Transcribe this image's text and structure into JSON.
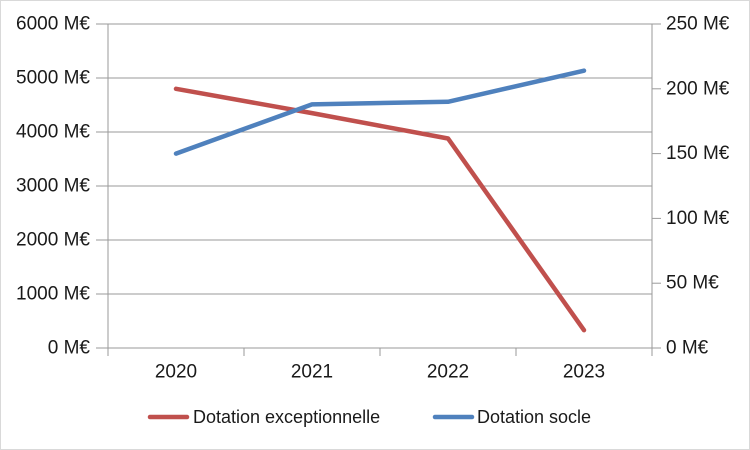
{
  "chart_data": {
    "type": "line",
    "title": "",
    "categories": [
      "2020",
      "2021",
      "2022",
      "2023"
    ],
    "series": [
      {
        "name": "Dotation exceptionnelle",
        "axis": "left",
        "color": "#C0504D",
        "values": [
          4800,
          4350,
          3880,
          330
        ]
      },
      {
        "name": "Dotation socle",
        "axis": "right",
        "color": "#4F81BD",
        "values": [
          150,
          188,
          190,
          214
        ]
      }
    ],
    "left_axis": {
      "min": 0,
      "max": 6000,
      "step": 1000,
      "unit": "M€",
      "tick_labels": [
        "0 M€",
        "1000 M€",
        "2000 M€",
        "3000 M€",
        "4000 M€",
        "5000 M€",
        "6000 M€"
      ]
    },
    "right_axis": {
      "min": 0,
      "max": 250,
      "step": 50,
      "unit": "M€",
      "tick_labels": [
        "0 M€",
        "50 M€",
        "100 M€",
        "150 M€",
        "200 M€",
        "250 M€"
      ]
    },
    "grid": true,
    "legend_position": "bottom"
  },
  "colors": {
    "background": "#FFFFFF",
    "gridline": "#9A9A9A",
    "axis": "#9A9A9A",
    "text": "#1A1A1A",
    "series_red": "#C0504D",
    "series_blue": "#4F81BD"
  }
}
